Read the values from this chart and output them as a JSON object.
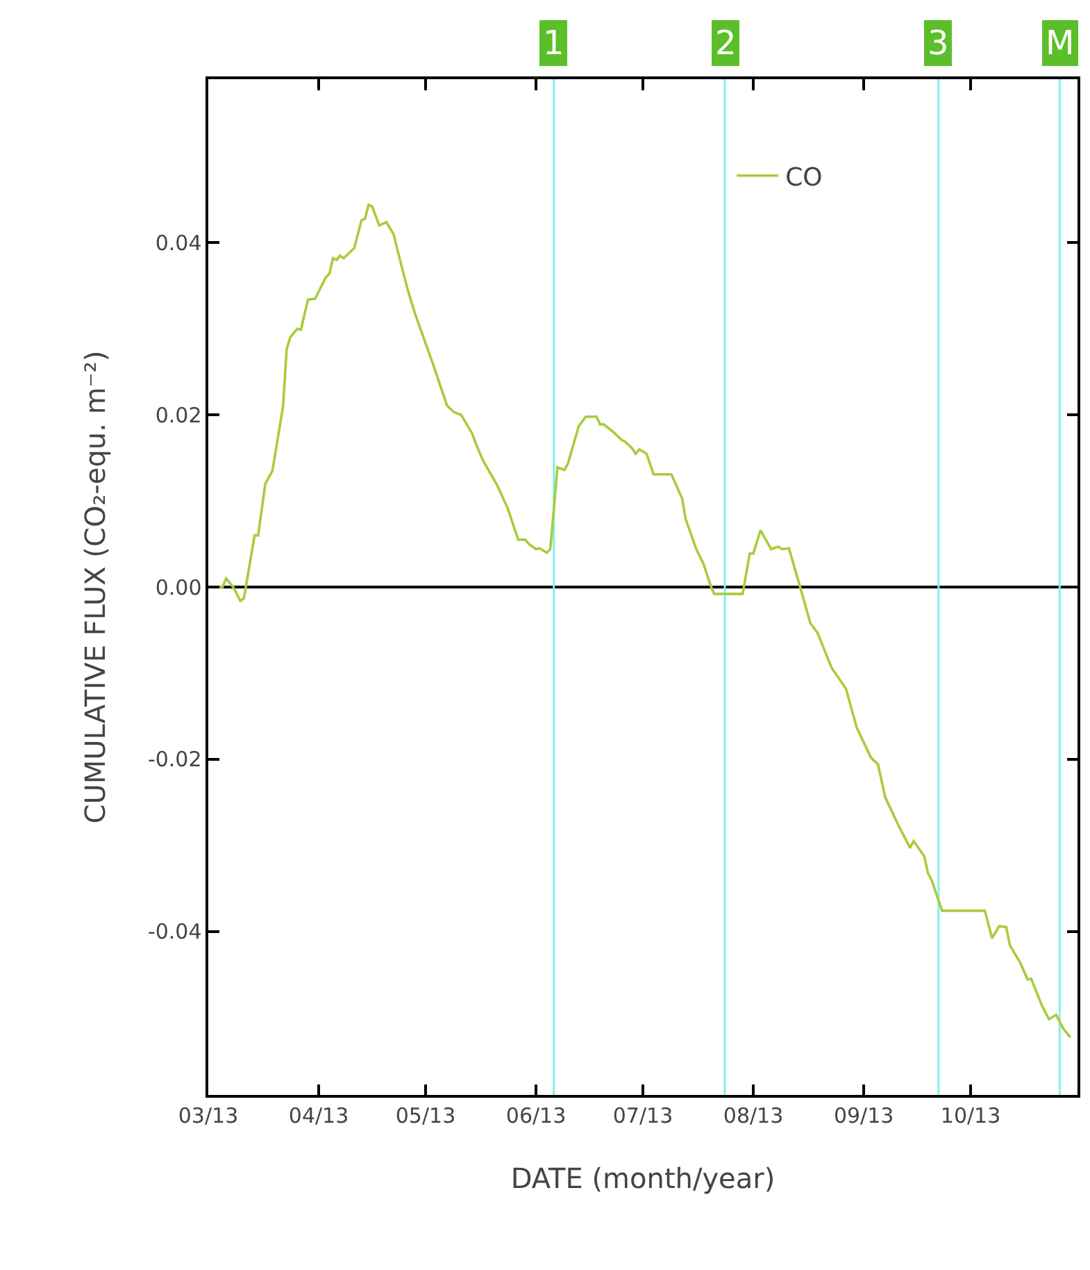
{
  "chart_data": {
    "type": "line",
    "xlabel": "DATE (month/year)",
    "ylabel": "CUMULATIVE FLUX (CO₂-equ. m⁻²)",
    "x": [
      "2013-03-02",
      "2013-03-05",
      "2013-03-06",
      "2013-03-08",
      "2013-03-10",
      "2013-03-11",
      "2013-03-14",
      "2013-03-15",
      "2013-03-17",
      "2013-03-19",
      "2013-03-22",
      "2013-03-23",
      "2013-03-24",
      "2013-03-26",
      "2013-03-27",
      "2013-03-29",
      "2013-03-31",
      "2013-04-03",
      "2013-04-04",
      "2013-04-05",
      "2013-04-06",
      "2013-04-07",
      "2013-04-08",
      "2013-04-10",
      "2013-04-11",
      "2013-04-13",
      "2013-04-14",
      "2013-04-15",
      "2013-04-16",
      "2013-04-18",
      "2013-04-20",
      "2013-04-22",
      "2013-04-24",
      "2013-04-26",
      "2013-04-28",
      "2013-05-03",
      "2013-05-07",
      "2013-05-09",
      "2013-05-11",
      "2013-05-14",
      "2013-05-15",
      "2013-05-17",
      "2013-05-21",
      "2013-05-24",
      "2013-05-27",
      "2013-05-29",
      "2013-05-30",
      "2013-06-01",
      "2013-06-02",
      "2013-06-04",
      "2013-06-05",
      "2013-06-06",
      "2013-06-07",
      "2013-06-09",
      "2013-06-10",
      "2013-06-13",
      "2013-06-15",
      "2013-06-18",
      "2013-06-19",
      "2013-06-20",
      "2013-06-23",
      "2013-06-25",
      "2013-06-26",
      "2013-06-28",
      "2013-06-29",
      "2013-06-30",
      "2013-07-02",
      "2013-07-04",
      "2013-07-09",
      "2013-07-12",
      "2013-07-13",
      "2013-07-16",
      "2013-07-18",
      "2013-07-20",
      "2013-07-21",
      "2013-07-29",
      "2013-07-31",
      "2013-08-01",
      "2013-08-03",
      "2013-08-06",
      "2013-08-08",
      "2013-08-09",
      "2013-08-11",
      "2013-08-14",
      "2013-08-17",
      "2013-08-19",
      "2013-08-23",
      "2013-08-27",
      "2013-08-30",
      "2013-09-03",
      "2013-09-05",
      "2013-09-07",
      "2013-09-11",
      "2013-09-14",
      "2013-09-15",
      "2013-09-18",
      "2013-09-19",
      "2013-09-20",
      "2013-09-23",
      "2013-10-05",
      "2013-10-07",
      "2013-10-09",
      "2013-10-11",
      "2013-10-12",
      "2013-10-15",
      "2013-10-17",
      "2013-10-18",
      "2013-10-21",
      "2013-10-23",
      "2013-10-25",
      "2013-10-27",
      "2013-10-29"
    ],
    "series": [
      {
        "name": "CO",
        "color": "#a8cc3c",
        "values": [
          0,
          0,
          0.001,
          0,
          -0.0016,
          -0.0013,
          0.006,
          0.006,
          0.012,
          0.0135,
          0.021,
          0.0276,
          0.029,
          0.03,
          0.0299,
          0.0334,
          0.0335,
          0.036,
          0.0364,
          0.0382,
          0.038,
          0.0385,
          0.0382,
          0.039,
          0.0394,
          0.0426,
          0.0428,
          0.0444,
          0.0442,
          0.042,
          0.0424,
          0.041,
          0.0377,
          0.0345,
          0.0318,
          0.026,
          0.0211,
          0.0203,
          0.02,
          0.0179,
          0.0168,
          0.0148,
          0.0119,
          0.0092,
          0.0055,
          0.0055,
          0.005,
          0.0044,
          0.0045,
          0.004,
          0.0044,
          0.009,
          0.0139,
          0.0136,
          0.0144,
          0.0187,
          0.0198,
          0.0198,
          0.0189,
          0.0189,
          0.0179,
          0.0171,
          0.0169,
          0.0161,
          0.0155,
          0.016,
          0.0155,
          0.0131,
          0.0131,
          0.0103,
          0.0079,
          0.0044,
          0.0027,
          0.0002,
          -0.0008,
          -0.0008,
          0.0039,
          0.0039,
          0.0066,
          0.0044,
          0.0047,
          0.0044,
          0.0045,
          0.0002,
          -0.0042,
          -0.0053,
          -0.0094,
          -0.0118,
          -0.0163,
          -0.0198,
          -0.0206,
          -0.0244,
          -0.0279,
          -0.0303,
          -0.0295,
          -0.0313,
          -0.0332,
          -0.034,
          -0.0376,
          -0.0376,
          -0.0408,
          -0.0394,
          -0.0395,
          -0.0416,
          -0.0437,
          -0.0456,
          -0.0455,
          -0.0486,
          -0.0502,
          -0.0497,
          -0.0513,
          -0.0523
        ]
      }
    ],
    "xlim": [
      "2013-03-01",
      "2013-10-31"
    ],
    "xticks": [
      {
        "value": "2013-03-01",
        "label": "03/13"
      },
      {
        "value": "2013-04-01",
        "label": "04/13"
      },
      {
        "value": "2013-05-01",
        "label": "05/13"
      },
      {
        "value": "2013-06-01",
        "label": "06/13"
      },
      {
        "value": "2013-07-01",
        "label": "07/13"
      },
      {
        "value": "2013-08-01",
        "label": "08/13"
      },
      {
        "value": "2013-09-01",
        "label": "09/13"
      },
      {
        "value": "2013-10-01",
        "label": "10/13"
      }
    ],
    "ylim": [
      -0.059,
      0.059
    ],
    "yticks": [
      {
        "value": -0.04,
        "label": "-0.04"
      },
      {
        "value": -0.02,
        "label": "-0.02"
      },
      {
        "value": 0,
        "label": "0.00"
      },
      {
        "value": 0.02,
        "label": "0.02"
      },
      {
        "value": 0.04,
        "label": "0.04"
      }
    ],
    "ref_lines": [
      {
        "axis": "y",
        "value": 0,
        "color": "#000000"
      },
      {
        "axis": "x",
        "value": "2013-06-06",
        "label": "1",
        "color": "#80eef5"
      },
      {
        "axis": "x",
        "value": "2013-07-24",
        "label": "2",
        "color": "#80eef5"
      },
      {
        "axis": "x",
        "value": "2013-09-22",
        "label": "3",
        "color": "#80eef5"
      },
      {
        "axis": "x",
        "value": "2013-10-26",
        "label": "M",
        "color": "#80eef5"
      }
    ],
    "grid": false,
    "legend": "top right",
    "marker": "none",
    "line_style": "solid"
  }
}
